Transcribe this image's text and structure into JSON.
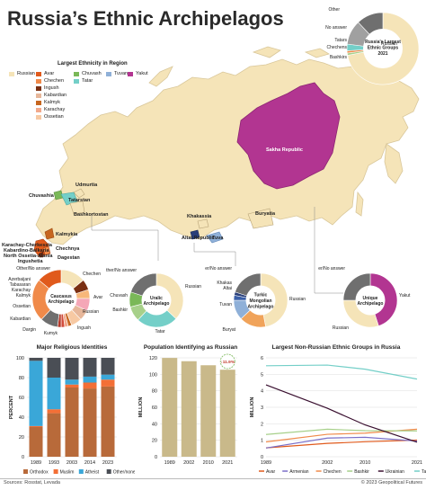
{
  "title": "Russia’s Ethnic Archipelagos",
  "footer": {
    "source": "Sources: Rosstat, Levada",
    "copyright": "© 2023 Geopolitical Futures"
  },
  "colors": {
    "russian": "#f5e4b8",
    "avar": "#e05a1c",
    "chechen": "#f08a4a",
    "ingush": "#7a2f12",
    "kabardian": "#e7b79a",
    "kalmyk": "#c7661f",
    "karachay": "#f2a98c",
    "ossetian": "#f7c9a3",
    "chuvash": "#7ab858",
    "tatar": "#74cfc8",
    "tuvan": "#8fb0d8",
    "yakut": "#b23591",
    "other": "#6f6f6f",
    "bashkir": "#a7d08a",
    "buryat": "#f0a35a",
    "khakas": "#3a5fa8",
    "altai": "#2a3f7a",
    "orthodox": "#b86a3a",
    "muslim": "#f36f36",
    "atheist": "#3aa7d8",
    "other_none": "#4a4e55"
  },
  "legend": {
    "title": "Largest Ethnicity in Region",
    "items": [
      {
        "label": "Russian",
        "color": "#f5e4b8"
      },
      {
        "label": "Avar",
        "color": "#e05a1c"
      },
      {
        "label": "Chechen",
        "color": "#f08a4a"
      },
      {
        "label": "Ingush",
        "color": "#7a2f12"
      },
      {
        "label": "Kabardian",
        "color": "#e7b79a"
      },
      {
        "label": "Kalmyk",
        "color": "#c7661f"
      },
      {
        "label": "Karachay",
        "color": "#f2a98c"
      },
      {
        "label": "Ossetian",
        "color": "#f7c9a3"
      },
      {
        "label": "Chuvash",
        "color": "#7ab858"
      },
      {
        "label": "Tatar",
        "color": "#74cfc8"
      },
      {
        "label": "Tuvan",
        "color": "#8fb0d8"
      },
      {
        "label": "Yakut",
        "color": "#b23591"
      }
    ]
  },
  "map_labels": {
    "sakha": "Sakha Republic",
    "udmurtia": "Udmurtia",
    "chuvashia": "Chuvashia",
    "tatarstan": "Tatarstan",
    "bashkortostan": "Bashkortostan",
    "kalmykia": "Kalmykia",
    "karachay": "Karachay-Cherkessia",
    "kabardino": "Kabardino-Balkaria",
    "north_ossetia": "North Ossetia-Alania",
    "ingushetia": "Ingushetia",
    "chechnya": "Chechnya",
    "dagestan": "Dagestan",
    "khakassia": "Khakassia",
    "buryatia": "Buryatia",
    "altai": "Altai Republic",
    "tuva": "Tuva"
  },
  "chart_data": [
    {
      "type": "pie",
      "title": "Russia's Largest Ethnic Groups 2021",
      "labels": [
        "Russian",
        "Bashkirs",
        "Chechens",
        "Tatars",
        "No answer",
        "Other"
      ],
      "values": [
        72,
        1,
        1,
        3,
        11,
        12
      ],
      "colors": [
        "#f5e4b8",
        "#a7d08a",
        "#f08a4a",
        "#74cfc8",
        "#a0a0a0",
        "#6f6f6f"
      ]
    },
    {
      "type": "pie",
      "title": "Caucasus Archipelago",
      "labels": [
        "Russian",
        "Ingush",
        "Kumyk",
        "Dargin",
        "Kabardian",
        "Ossetian",
        "Kalmyk",
        "Karachay",
        "Tabasaran",
        "Azerbaijani",
        "Other/No answer",
        "Chechen",
        "Avar"
      ],
      "values": [
        14,
        6,
        5,
        7,
        6,
        6,
        2,
        2,
        2,
        2,
        10,
        24,
        14
      ],
      "colors": [
        "#f5e4b8",
        "#7a2f12",
        "#f7b77a",
        "#f5a7b7",
        "#e7b79a",
        "#f7c9a3",
        "#c7661f",
        "#f2a98c",
        "#d24b3a",
        "#b43a2a",
        "#6f6f6f",
        "#f08a4a",
        "#e05a1c"
      ]
    },
    {
      "type": "pie",
      "title": "Uralic Archipelago",
      "labels": [
        "Russian",
        "Tatar",
        "Bashkir",
        "Chuvash",
        "Other/No answer"
      ],
      "values": [
        37,
        25,
        9,
        9,
        20
      ],
      "colors": [
        "#f5e4b8",
        "#74cfc8",
        "#a7d08a",
        "#7ab858",
        "#6f6f6f"
      ]
    },
    {
      "type": "pie",
      "title": "Turkic Mongolian Archipelago",
      "labels": [
        "Russian",
        "Buryat",
        "Tuvan",
        "Khakas",
        "Altai",
        "Other/No answer"
      ],
      "values": [
        47,
        16,
        12,
        3,
        2,
        20
      ],
      "colors": [
        "#f5e4b8",
        "#f0a35a",
        "#8fb0d8",
        "#3a5fa8",
        "#2a3f7a",
        "#6f6f6f"
      ]
    },
    {
      "type": "pie",
      "title": "Unique Archipelago",
      "labels": [
        "Yakut",
        "Russian",
        "Other/No answer"
      ],
      "values": [
        45,
        30,
        25
      ],
      "colors": [
        "#b23591",
        "#f5e4b8",
        "#6f6f6f"
      ]
    },
    {
      "type": "bar",
      "stacked": true,
      "title": "Major Religious Identities",
      "categories": [
        "1989",
        "1993",
        "2003",
        "2014",
        "2023"
      ],
      "ylabel": "PERCENT",
      "ylim": [
        0,
        100
      ],
      "series": [
        {
          "name": "Orthodox",
          "color": "#b86a3a",
          "values": [
            30,
            44,
            70,
            69,
            71
          ]
        },
        {
          "name": "Muslim",
          "color": "#f36f36",
          "values": [
            1,
            4,
            3,
            6,
            7
          ]
        },
        {
          "name": "Atheist",
          "color": "#3aa7d8",
          "values": [
            66,
            32,
            5,
            6,
            5
          ]
        },
        {
          "name": "Other/none",
          "color": "#4a4e55",
          "values": [
            3,
            20,
            22,
            19,
            17
          ]
        }
      ]
    },
    {
      "type": "bar",
      "title": "Population Identifying as Russian",
      "categories": [
        "1989",
        "2002",
        "2010",
        "2021"
      ],
      "ylabel": "MILLION",
      "ylim": [
        0,
        120
      ],
      "values": [
        119.9,
        115.9,
        111.0,
        105.6
      ],
      "annotation": "↓11.9%"
    },
    {
      "type": "line",
      "title": "Largest Non-Russian Ethnic Groups in Russia",
      "x": [
        "1989",
        "2002",
        "2010",
        "2021"
      ],
      "ylabel": "MILLION",
      "ylim": [
        0,
        6
      ],
      "series": [
        {
          "name": "Avar",
          "color": "#e05a1c",
          "values": [
            0.54,
            0.81,
            0.91,
            1.01
          ]
        },
        {
          "name": "Armenian",
          "color": "#7a6fc8",
          "values": [
            0.53,
            1.13,
            1.18,
            0.95
          ]
        },
        {
          "name": "Chechen",
          "color": "#f08a4a",
          "values": [
            0.9,
            1.36,
            1.43,
            1.67
          ]
        },
        {
          "name": "Bashkir",
          "color": "#a7d08a",
          "values": [
            1.35,
            1.67,
            1.58,
            1.57
          ]
        },
        {
          "name": "Ukrainian",
          "color": "#3a1030",
          "values": [
            4.36,
            2.94,
            1.93,
            0.88
          ]
        },
        {
          "name": "Tatar",
          "color": "#74cfc8",
          "values": [
            5.52,
            5.56,
            5.31,
            4.71
          ]
        }
      ]
    }
  ]
}
